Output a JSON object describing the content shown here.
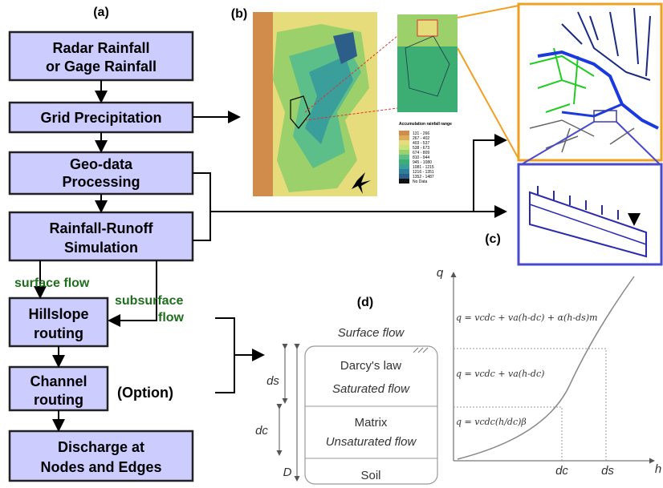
{
  "panel_labels": {
    "a": "(a)",
    "b": "(b)",
    "c": "(c)",
    "d": "(d)"
  },
  "flowchart": {
    "nodes": [
      {
        "lines": [
          "Radar Rainfall",
          "or Gage Rainfall"
        ]
      },
      {
        "lines": [
          "Grid Precipitation"
        ]
      },
      {
        "lines": [
          "Geo-data",
          "Processing"
        ]
      },
      {
        "lines": [
          "Rainfall-Runoff",
          "Simulation"
        ]
      },
      {
        "lines": [
          "Hillslope",
          "routing"
        ]
      },
      {
        "lines": [
          "Channel",
          "routing"
        ]
      },
      {
        "lines": [
          "Discharge at",
          "Nodes and Edges"
        ]
      }
    ],
    "surface_flow": "surface flow",
    "subsurface_flow": [
      "subsurface",
      "flow"
    ],
    "option": "(Option)"
  },
  "map_legend": {
    "title": "Accumulation rainfall range",
    "ranges": [
      "131 - 266",
      "267 - 402",
      "403 - 537",
      "538 - 673",
      "674 - 809",
      "810 - 944",
      "945 - 1080",
      "1081 - 1215",
      "1216 - 1351",
      "1352 - 1487",
      "No Data"
    ]
  },
  "soil_column": {
    "surface_flow": "Surface flow",
    "darcy": "Darcy's law",
    "saturated": "Saturated flow",
    "matrix": "Matrix",
    "unsaturated": "Unsaturated flow",
    "soil": "Soil",
    "ds": "ds",
    "dc": "dc",
    "D": "D"
  },
  "graph": {
    "y_label": "q",
    "x_label": "h",
    "equations": [
      "q = vcdc + va(h-dc) + α(h-ds)m",
      "q = vcdc + va(h-dc)",
      "q = vcdc(h/dc)β"
    ],
    "x_ticks": [
      "dc",
      "ds"
    ]
  }
}
